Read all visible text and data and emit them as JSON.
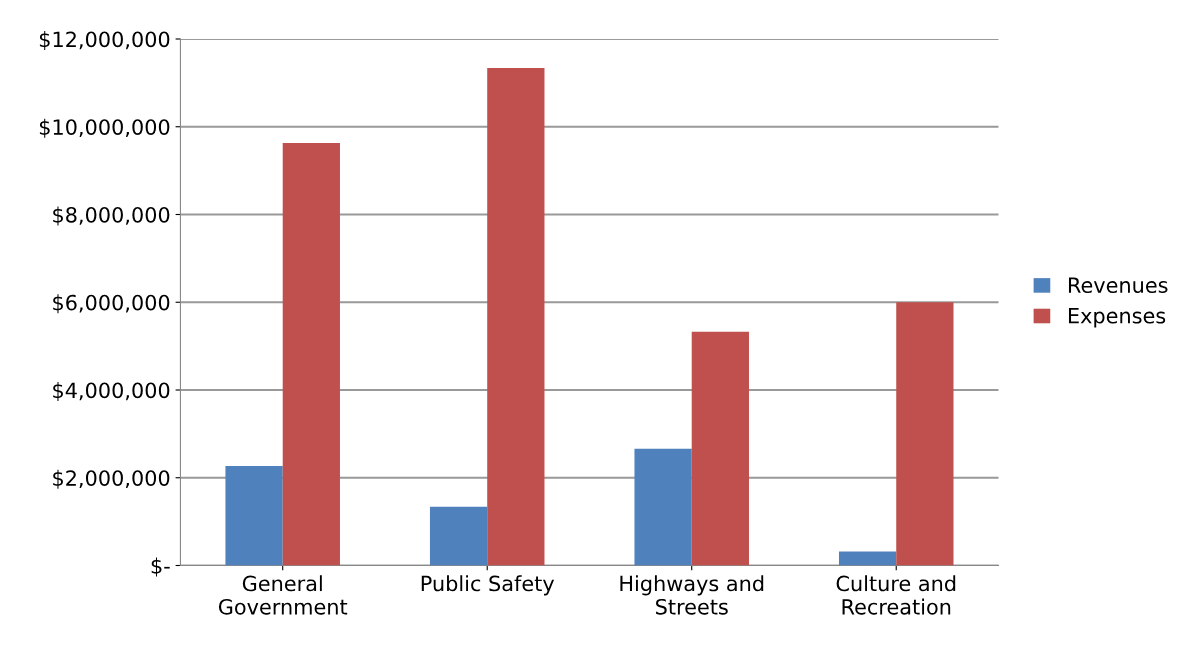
{
  "chart_data": {
    "type": "bar",
    "categories": [
      "General\nGovernment",
      "Public Safety",
      "Highways and\nStreets",
      "Culture and\nRecreation"
    ],
    "series": [
      {
        "name": "Revenues",
        "color": "#4f81bd",
        "values": [
          2270000,
          1340000,
          2660000,
          320000
        ]
      },
      {
        "name": "Expenses",
        "color": "#c0504d",
        "values": [
          9630000,
          11340000,
          5330000,
          6000000
        ]
      }
    ],
    "ylim": [
      0,
      12000000
    ],
    "yticks": [
      {
        "value": 0,
        "label": "$-"
      },
      {
        "value": 2000000,
        "label": "$2,000,000"
      },
      {
        "value": 4000000,
        "label": "$4,000,000"
      },
      {
        "value": 6000000,
        "label": "$6,000,000"
      },
      {
        "value": 8000000,
        "label": "$8,000,000"
      },
      {
        "value": 10000000,
        "label": "$10,000,000"
      },
      {
        "value": 12000000,
        "label": "$12,000,000"
      }
    ],
    "grid": "y",
    "legend": "right"
  }
}
